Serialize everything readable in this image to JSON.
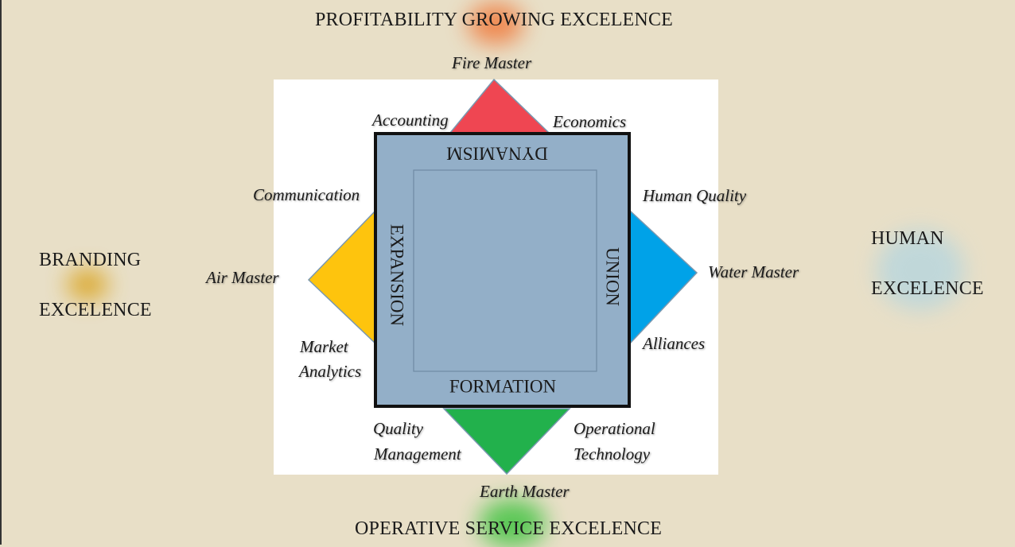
{
  "headings": {
    "top": "PROFITABILITY GROWING EXCELENCE",
    "bottom": "OPERATIVE SERVICE  EXCELENCE",
    "left_line1": "BRANDING",
    "left_line2": "EXCELENCE",
    "right_line1": "HUMAN",
    "right_line2": "EXCELENCE"
  },
  "masters": {
    "fire": "Fire Master",
    "water": "Water Master",
    "earth": "Earth Master",
    "air": "Air Master"
  },
  "areas": {
    "accounting": "Accounting",
    "economics": "Economics",
    "communication": "Communication",
    "human_quality": "Human Quality",
    "market_line1": "Market",
    "market_line2": "Analytics",
    "alliances": "Alliances",
    "quality_line1": "Quality",
    "quality_line2": "Management",
    "operational_line1": "Operational",
    "operational_line2": "Technology"
  },
  "square_sides": {
    "top": "DYNAMISM",
    "bottom": "FORMATION",
    "left": "EXPANSION",
    "right": "UNION"
  },
  "colors": {
    "background": "#e8dfc7",
    "panel": "#ffffff",
    "square_fill": "#93afc8",
    "fire": "#ef4652",
    "water": "#00a2e8",
    "earth": "#22b14c",
    "air": "#fec40d",
    "glow_orange": "#f07a3c",
    "glow_green": "#4cc54a",
    "glow_gold": "#d9a21a",
    "glow_blue": "#bcd7dc"
  }
}
